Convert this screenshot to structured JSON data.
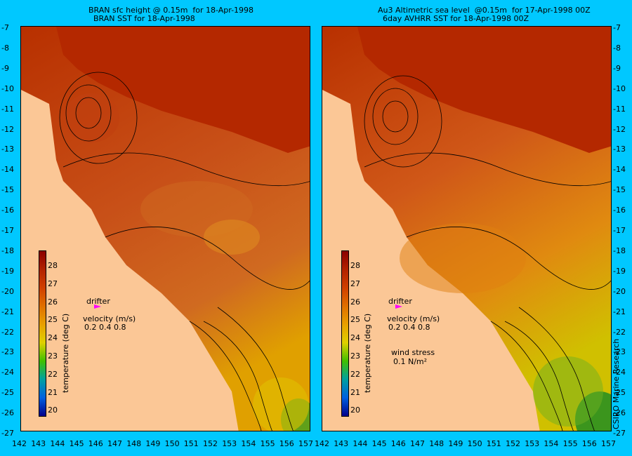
{
  "left_panel": {
    "title_line1": "BRAN sfc height @ 0.15m  for 18-Apr-1998",
    "title_line2": "BRAN SST for 18-Apr-1998"
  },
  "right_panel": {
    "title_line1": "Au3 Altimetric sea level  @0.15m  for 17-Apr-1998 00Z",
    "title_line2": "6day AVHRR SST for 18-Apr-1998 00Z"
  },
  "y_ticks": [
    "-7",
    "-8",
    "-9",
    "-10",
    "-11",
    "-12",
    "-13",
    "-14",
    "-15",
    "-16",
    "-17",
    "-18",
    "-19",
    "-20",
    "-21",
    "-22",
    "-23",
    "-24",
    "-25",
    "-26",
    "-27"
  ],
  "x_ticks_left": [
    "142",
    "143",
    "144",
    "145",
    "146",
    "147",
    "148",
    "149",
    "150",
    "151",
    "152",
    "153",
    "154",
    "155",
    "156",
    "157"
  ],
  "x_ticks_right": [
    "142",
    "143",
    "144",
    "145",
    "146",
    "147",
    "148",
    "149",
    "150",
    "151",
    "152",
    "153",
    "154",
    "155",
    "156",
    "157"
  ],
  "colorbar": {
    "label": "temperature (deg C)",
    "ticks": [
      "28",
      "27",
      "26",
      "25",
      "24",
      "23",
      "22",
      "21",
      "20"
    ],
    "colors": [
      "#8b0000",
      "#b22200",
      "#d04000",
      "#e07000",
      "#e8a000",
      "#e0d000",
      "#40c000",
      "#00a0a0",
      "#0060e0",
      "#00008b"
    ]
  },
  "legend": {
    "drifter": "drifter",
    "velocity": "velocity (m/s)",
    "velocity_scale": "0.2 0.4 0.8",
    "wind_stress": "wind stress",
    "wind_value": "0.1 N/m²"
  },
  "credit": "CSIRO Marine Research",
  "colors": {
    "background": "#00c8ff",
    "land": "#fbc796",
    "warm_sea": "#b42800",
    "sea_mid": "#c84a10",
    "drifter": "#ff00ff"
  }
}
